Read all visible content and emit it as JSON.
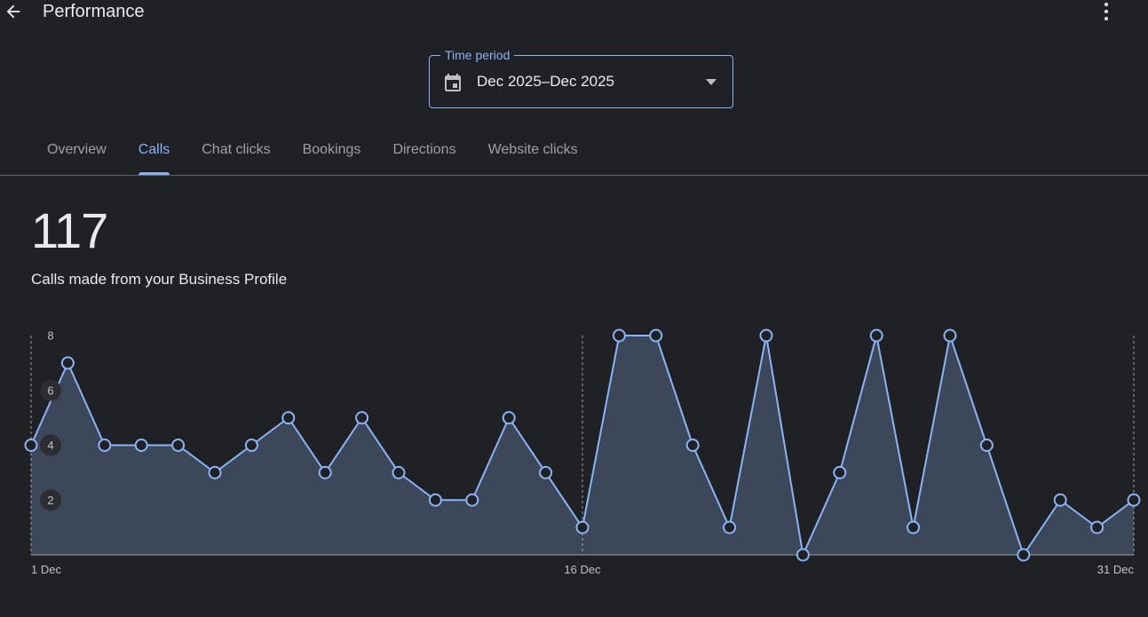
{
  "header": {
    "title": "Performance",
    "back_icon": "arrow-back-icon",
    "more_icon": "more-vert-icon"
  },
  "period": {
    "label": "Time period",
    "value": "Dec 2025–Dec 2025",
    "icon": "calendar-icon"
  },
  "tabs": [
    {
      "label": "Overview",
      "active": false
    },
    {
      "label": "Calls",
      "active": true
    },
    {
      "label": "Chat clicks",
      "active": false
    },
    {
      "label": "Bookings",
      "active": false
    },
    {
      "label": "Directions",
      "active": false
    },
    {
      "label": "Website clicks",
      "active": false
    }
  ],
  "metric": {
    "value": "117",
    "caption": "Calls made from your Business Profile"
  },
  "colors": {
    "accent": "#8ab4f8",
    "area_fill": "#3c4759",
    "background": "#202124"
  },
  "chart_data": {
    "type": "area",
    "x": [
      "1 Dec",
      "2 Dec",
      "3 Dec",
      "4 Dec",
      "5 Dec",
      "6 Dec",
      "7 Dec",
      "8 Dec",
      "9 Dec",
      "10 Dec",
      "11 Dec",
      "12 Dec",
      "13 Dec",
      "14 Dec",
      "15 Dec",
      "16 Dec",
      "17 Dec",
      "18 Dec",
      "19 Dec",
      "20 Dec",
      "21 Dec",
      "22 Dec",
      "23 Dec",
      "24 Dec",
      "25 Dec",
      "26 Dec",
      "27 Dec",
      "28 Dec",
      "29 Dec",
      "30 Dec",
      "31 Dec"
    ],
    "values": [
      4,
      7,
      4,
      4,
      4,
      3,
      4,
      5,
      3,
      5,
      3,
      2,
      2,
      5,
      3,
      1,
      8,
      8,
      4,
      1,
      8,
      0,
      3,
      8,
      1,
      8,
      4,
      0,
      2,
      1,
      2
    ],
    "x_tick_labels": [
      "1 Dec",
      "16 Dec",
      "31 Dec"
    ],
    "y_tick_labels": [
      "2",
      "4",
      "6",
      "8"
    ],
    "ylim": [
      0,
      8
    ],
    "grid": false,
    "legend": "none"
  }
}
